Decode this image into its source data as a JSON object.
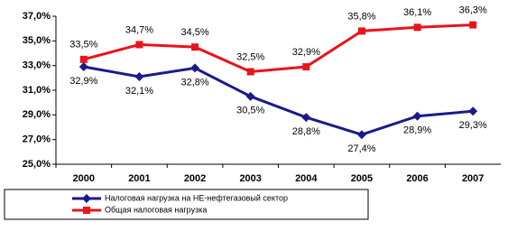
{
  "chart_data": {
    "type": "line",
    "categories": [
      "2000",
      "2001",
      "2002",
      "2003",
      "2004",
      "2005",
      "2006",
      "2007"
    ],
    "series": [
      {
        "name": "Налоговая нагрузка на НЕ-нефтегазовый сектор",
        "color": "#1a1a8c",
        "values": [
          32.9,
          32.1,
          32.8,
          30.5,
          28.8,
          27.4,
          28.9,
          29.3
        ],
        "value_labels": [
          "32,9%",
          "32,1%",
          "32,8%",
          "30,5%",
          "28,8%",
          "27,4%",
          "28,9%",
          "29,3%"
        ]
      },
      {
        "name": "Общая налоговая нагрузка",
        "color": "#e8141b",
        "values": [
          33.5,
          34.7,
          34.5,
          32.5,
          32.9,
          35.8,
          36.1,
          36.3
        ],
        "value_labels": [
          "33,5%",
          "34,7%",
          "34,5%",
          "32,5%",
          "32,9%",
          "35,8%",
          "36,1%",
          "36,3%"
        ]
      }
    ],
    "ylim": [
      25,
      37
    ],
    "yticks": [
      {
        "value": 25,
        "label": "25,0%"
      },
      {
        "value": 27,
        "label": "27,0%"
      },
      {
        "value": 29,
        "label": "29,0%"
      },
      {
        "value": 31,
        "label": "31,0%"
      },
      {
        "value": 33,
        "label": "33,0%"
      },
      {
        "value": 35,
        "label": "35,0%"
      },
      {
        "value": 37,
        "label": "37,0%"
      }
    ],
    "legend": "bottom"
  }
}
